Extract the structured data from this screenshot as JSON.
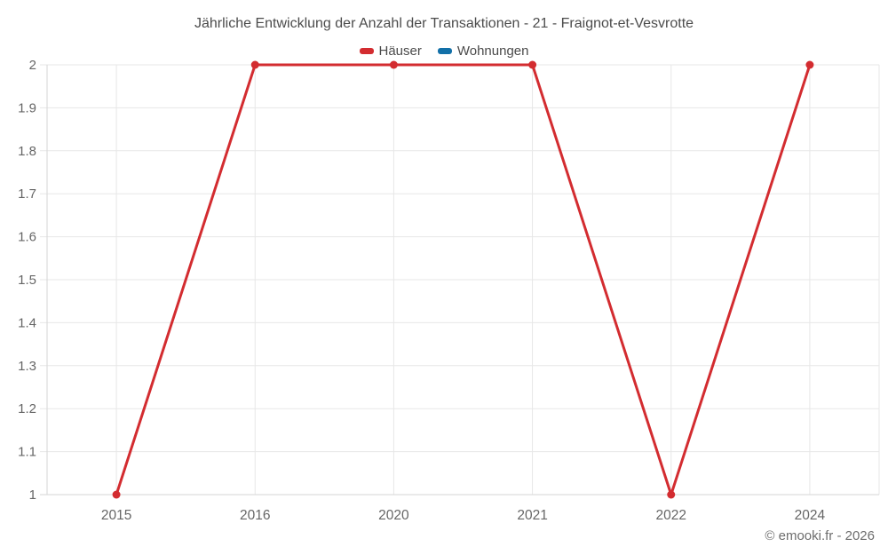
{
  "footer": "© emooki.fr - 2026",
  "chart_data": {
    "type": "line",
    "title": "Jährliche Entwicklung der Anzahl der Transaktionen - 21 - Fraignot-et-Vesvrotte",
    "categories": [
      "2015",
      "2016",
      "2020",
      "2021",
      "2022",
      "2024"
    ],
    "series": [
      {
        "name": "Häuser",
        "color": "#d32c30",
        "values": [
          1,
          2,
          2,
          2,
          1,
          2
        ]
      },
      {
        "name": "Wohnungen",
        "color": "#1270a8",
        "values": []
      }
    ],
    "xlabel": "",
    "ylabel": "",
    "ylim": [
      1,
      2
    ],
    "ytick_step": 0.1,
    "ytick_labels": [
      "1",
      "1.1",
      "1.2",
      "1.3",
      "1.4",
      "1.5",
      "1.6",
      "1.7",
      "1.8",
      "1.9",
      "2"
    ],
    "grid": true,
    "legend_position": "top",
    "background_color": "#ffffff",
    "grid_color": "#e7e7e7",
    "axis_line_color": "#d6d6d6"
  }
}
